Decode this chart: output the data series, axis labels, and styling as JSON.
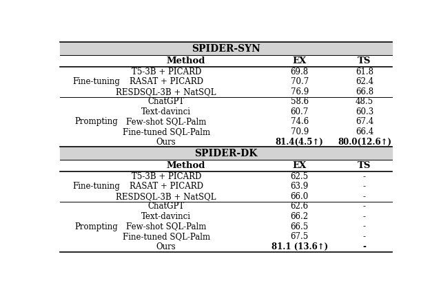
{
  "fig_width": 6.4,
  "fig_height": 4.4,
  "dpi": 100,
  "background_color": "#ffffff",
  "header_bg_color": "#d3d3d3",
  "sections": [
    {
      "title": "SPIDER-SYN",
      "groups": [
        {
          "group_label": "Fine-tuning",
          "rows": [
            [
              "T5-3B + PICARD",
              "69.8",
              "61.8"
            ],
            [
              "RASAT + PICARD",
              "70.7",
              "62.4"
            ],
            [
              "RESDSQL-3B + NatSQL",
              "76.9",
              "66.8"
            ]
          ]
        },
        {
          "group_label": "Prompting",
          "rows": [
            [
              "ChatGPT",
              "58.6",
              "48.5"
            ],
            [
              "Text-davinci",
              "60.7",
              "60.3"
            ],
            [
              "Few-shot SQL-Palm",
              "74.6",
              "67.4"
            ],
            [
              "Fine-tuned SQL-Palm",
              "70.9",
              "66.4"
            ],
            [
              "Ours",
              "81.4(4.5↑)",
              "80.0(12.6↑)"
            ]
          ],
          "bold_last": true
        }
      ]
    },
    {
      "title": "SPIDER-DK",
      "groups": [
        {
          "group_label": "Fine-tuning",
          "rows": [
            [
              "T5-3B + PICARD",
              "62.5",
              "-"
            ],
            [
              "RASAT + PICARD",
              "63.9",
              "-"
            ],
            [
              "RESDSQL-3B + NatSQL",
              "66.0",
              "-"
            ]
          ]
        },
        {
          "group_label": "Prompting",
          "rows": [
            [
              "ChatGPT",
              "62.6",
              "-"
            ],
            [
              "Text-davinci",
              "66.2",
              "-"
            ],
            [
              "Few-shot SQL-Palm",
              "66.5",
              "-"
            ],
            [
              "Fine-tuned SQL-Palm",
              "67.5",
              "-"
            ],
            [
              "Ours",
              "81.1 (13.6↑)",
              "-"
            ]
          ],
          "bold_last": true
        }
      ]
    }
  ]
}
